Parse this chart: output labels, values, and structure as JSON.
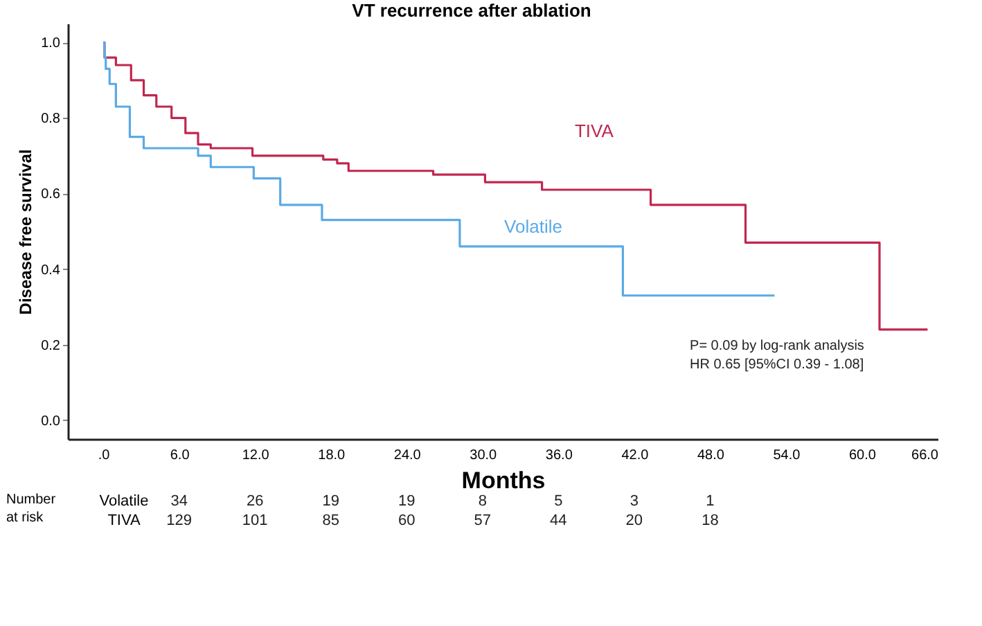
{
  "chart_data": [
    {
      "type": "step",
      "title": "VT recurrence after ablation",
      "xlabel": "Months",
      "ylabel": "Disease free survival",
      "series": [
        {
          "name": "TIVA",
          "color": "#c0274f",
          "x": [
            0,
            0.1,
            1.0,
            2.2,
            3.2,
            4.2,
            5.4,
            6.5,
            7.5,
            8.5,
            11.8,
            17.4,
            18.5,
            19.4,
            26.1,
            30.2,
            34.7,
            43.3,
            50.8,
            61.4,
            65.2
          ],
          "values": [
            1.0,
            0.96,
            0.94,
            0.9,
            0.86,
            0.83,
            0.8,
            0.76,
            0.73,
            0.72,
            0.7,
            0.69,
            0.68,
            0.66,
            0.65,
            0.63,
            0.61,
            0.57,
            0.47,
            0.24,
            0.24
          ]
        },
        {
          "name": "Volatile",
          "color": "#5aaae6",
          "x": [
            0,
            0.1,
            0.2,
            0.5,
            1.0,
            2.1,
            3.2,
            7.5,
            8.5,
            11.9,
            14.0,
            17.3,
            28.2,
            41.1,
            53.1
          ],
          "values": [
            1.0,
            0.96,
            0.93,
            0.89,
            0.83,
            0.75,
            0.72,
            0.7,
            0.67,
            0.64,
            0.57,
            0.53,
            0.46,
            0.33,
            0.33
          ]
        }
      ],
      "xlim": [
        -2.8,
        66
      ],
      "ylim": [
        -0.05,
        1.05
      ],
      "xticks": [
        {
          "value": 0,
          "label": ".0"
        },
        {
          "value": 6,
          "label": "6.0"
        },
        {
          "value": 12,
          "label": "12.0"
        },
        {
          "value": 18,
          "label": "18.0"
        },
        {
          "value": 24,
          "label": "24.0"
        },
        {
          "value": 30,
          "label": "30.0"
        },
        {
          "value": 36,
          "label": "36.0"
        },
        {
          "value": 42,
          "label": "42.0"
        },
        {
          "value": 48,
          "label": "48.0"
        },
        {
          "value": 54,
          "label": "54.0"
        },
        {
          "value": 60,
          "label": "60.0"
        },
        {
          "value": 66,
          "label": "66.0"
        }
      ],
      "yticks": [
        {
          "value": 0,
          "label": "0.0"
        },
        {
          "value": 0.2,
          "label": "0.2"
        },
        {
          "value": 0.4,
          "label": "0.4"
        },
        {
          "value": 0.6,
          "label": "0.6"
        },
        {
          "value": 0.8,
          "label": "0.8"
        },
        {
          "value": 1,
          "label": "1.0"
        }
      ],
      "annotations": [
        "P= 0.09 by log-rank analysis",
        "HR 0.65 [95%CI 0.39 - 1.08]"
      ],
      "grid": false,
      "legend": false,
      "line_style": "solid",
      "marker": "none"
    },
    {
      "type": "heatmap",
      "ylabel": "Number at risk",
      "categories": [
        null,
        null,
        null,
        null,
        null,
        null,
        null,
        null
      ],
      "y_categories": [
        "Volatile",
        "TIVA"
      ],
      "cells": [
        [
          34,
          26,
          19,
          19,
          8,
          5,
          3,
          1
        ],
        [
          129,
          101,
          85,
          60,
          57,
          44,
          20,
          18
        ]
      ],
      "data_labels": true,
      "tick_labels": "y"
    }
  ]
}
